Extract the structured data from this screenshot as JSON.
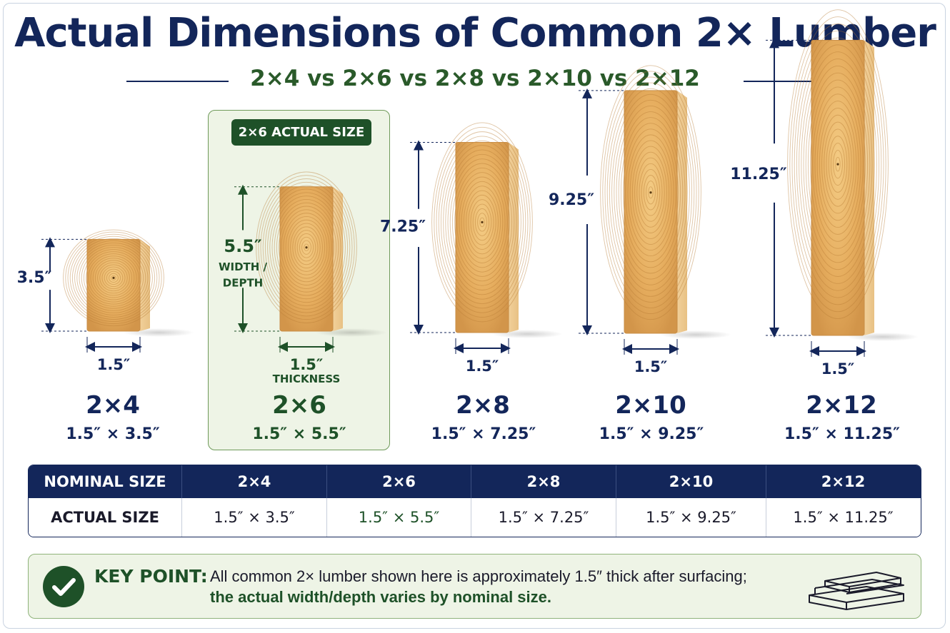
{
  "title": "Actual Dimensions of Common 2× Lumber",
  "subtitle": "2×4 vs 2×6 vs 2×8 vs 2×10 vs 2×12",
  "highlight": {
    "badge": "2×6 ACTUAL SIZE",
    "width_label": "WIDTH /",
    "depth_label": "DEPTH",
    "thickness_label": "THICKNESS"
  },
  "boards": [
    {
      "name": "2×4",
      "height_label": "3.5″",
      "thickness_label": "1.5″",
      "size": "1.5″ × 3.5″",
      "actual_depth_in": 3.5
    },
    {
      "name": "2×6",
      "height_label": "5.5″",
      "thickness_label": "1.5″",
      "size": "1.5″ × 5.5″",
      "actual_depth_in": 5.5,
      "highlighted": true
    },
    {
      "name": "2×8",
      "height_label": "7.25″",
      "thickness_label": "1.5″",
      "size": "1.5″ × 7.25″",
      "actual_depth_in": 7.25
    },
    {
      "name": "2×10",
      "height_label": "9.25″",
      "thickness_label": "1.5″",
      "size": "1.5″ × 9.25″",
      "actual_depth_in": 9.25
    },
    {
      "name": "2×12",
      "height_label": "11.25″",
      "thickness_label": "1.5″",
      "size": "1.5″ × 11.25″",
      "actual_depth_in": 11.25
    }
  ],
  "table": {
    "header_label": "NOMINAL SIZE",
    "row_label": "ACTUAL SIZE",
    "columns": [
      "2×4",
      "2×6",
      "2×8",
      "2×10",
      "2×12"
    ],
    "values": [
      "1.5″ × 3.5″",
      "1.5″ × 5.5″",
      "1.5″ × 7.25″",
      "1.5″ × 9.25″",
      "1.5″ × 11.25″"
    ]
  },
  "key_point": {
    "label": "KEY POINT:",
    "line1": "All common 2× lumber shown here is approximately 1.5″ thick after surfacing;",
    "line2": "the actual width/depth varies by nominal size.",
    "icon": "check-icon"
  },
  "colors": {
    "navy": "#13265a",
    "green": "#1e5128",
    "wood": "#e0a85a",
    "highlight_bg": "#eef4e6"
  }
}
